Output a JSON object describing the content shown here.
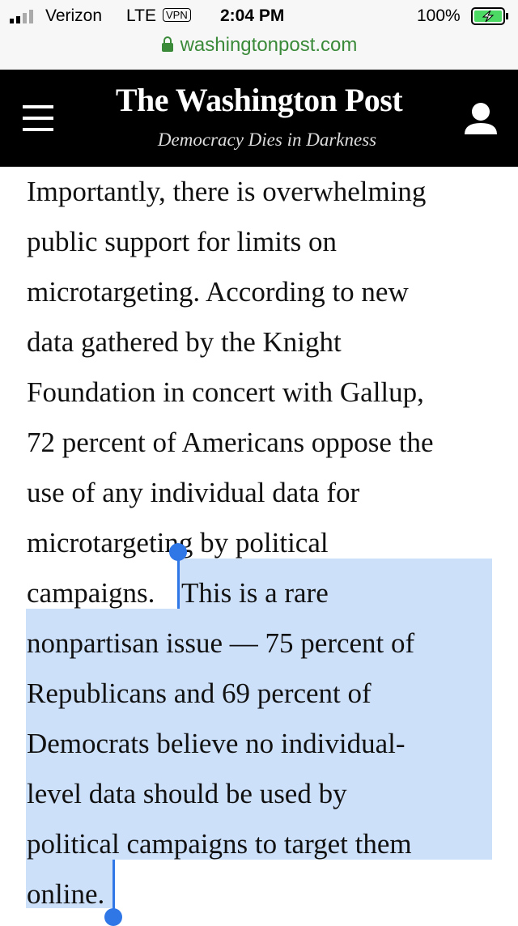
{
  "status_bar": {
    "carrier": "Verizon",
    "network": "LTE",
    "vpn": "VPN",
    "time": "2:04 PM",
    "battery": "100%"
  },
  "address_bar": {
    "url": "washingtonpost.com"
  },
  "header": {
    "title": "The Washington Post",
    "tagline": "Democracy Dies in Darkness"
  },
  "article": {
    "plain_lines": [
      "Importantly, there is overwhelming",
      "public support for limits on",
      "microtargeting. According to new",
      "data gathered by the Knight",
      "Foundation in concert with Gallup,",
      "72 percent of Americans oppose the",
      "use of any individual data for",
      "microtargeting by political",
      "campaigns."
    ],
    "selected_lines": [
      "This is a rare",
      "nonpartisan issue — 75 percent of",
      "Republicans and 69 percent of",
      "Democrats believe no individual-",
      "level data should be used by",
      "political campaigns to target them",
      "online."
    ]
  }
}
